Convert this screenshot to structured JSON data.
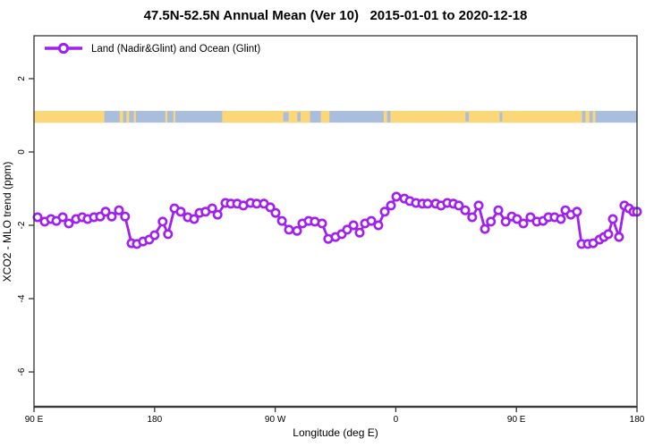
{
  "chart_data": {
    "type": "line",
    "title": "47.5N-52.5N Annual Mean (Ver 10)   2015-01-01 to 2020-12-18",
    "xlabel": "Longitude (deg E)",
    "ylabel": "XCO2 - MLO trend (ppm)",
    "legend": [
      {
        "label": "Land (Nadir&Glint) and Ocean (Glint)",
        "color": "#A020F0",
        "marker": "open-circle"
      }
    ],
    "x_axis": {
      "note": "longitude wraps: 90E -> 180 -> 90W -> 0 -> 90E -> 180, expressed as degrees east of 90E",
      "range_deg": [
        0,
        450
      ],
      "ticks": [
        {
          "pos": 0,
          "label": "90 E"
        },
        {
          "pos": 90,
          "label": "180"
        },
        {
          "pos": 180,
          "label": "90 W"
        },
        {
          "pos": 270,
          "label": "0"
        },
        {
          "pos": 360,
          "label": "90 E"
        },
        {
          "pos": 450,
          "label": "180"
        }
      ],
      "grid": false
    },
    "y_axis": {
      "range": [
        -6.95,
        3.17
      ],
      "ticks": [
        2,
        0,
        -2,
        -4,
        -6
      ],
      "grid": false
    },
    "surface_band": {
      "description": "land(yellow)/ocean(blue) strip near y=1 showing surface type along 47.5N-52.5N",
      "y_from": 0.8,
      "y_to": 1.12,
      "ocean_color": "#A9BEDC",
      "land_color": "#FBD778",
      "land_segments_deg": [
        [
          0,
          52.5
        ],
        [
          64,
          66.5
        ],
        [
          69,
          71
        ],
        [
          74.5,
          76
        ],
        [
          98,
          99.5
        ],
        [
          104,
          105.5
        ],
        [
          140.5,
          206
        ],
        [
          214,
          220.5
        ],
        [
          261,
          263.5
        ],
        [
          266,
          409
        ],
        [
          411.5,
          414.5
        ],
        [
          417,
          419
        ]
      ],
      "ocean_specks_deg": [
        [
          186,
          190
        ],
        [
          196.5,
          199
        ],
        [
          322,
          324.5
        ],
        [
          347.5,
          349.5
        ]
      ]
    },
    "series": [
      {
        "name": "Land (Nadir&Glint) and Ocean (Glint)",
        "color": "#A020F0",
        "marker": "open-circle",
        "points_deg_ppm": [
          [
            2.7,
            -1.78
          ],
          [
            8,
            -1.9
          ],
          [
            12.7,
            -1.83
          ],
          [
            16.7,
            -1.88
          ],
          [
            21.4,
            -1.78
          ],
          [
            26,
            -1.95
          ],
          [
            31.4,
            -1.83
          ],
          [
            36,
            -1.78
          ],
          [
            40,
            -1.83
          ],
          [
            44.7,
            -1.78
          ],
          [
            49.4,
            -1.76
          ],
          [
            53.4,
            -1.63
          ],
          [
            58,
            -1.76
          ],
          [
            63.4,
            -1.59
          ],
          [
            68,
            -1.76
          ],
          [
            72.8,
            -2.49
          ],
          [
            76.8,
            -2.51
          ],
          [
            81.4,
            -2.44
          ],
          [
            86,
            -2.39
          ],
          [
            90,
            -2.27
          ],
          [
            96,
            -1.9
          ],
          [
            100,
            -2.24
          ],
          [
            104.8,
            -1.54
          ],
          [
            109.5,
            -1.63
          ],
          [
            114.8,
            -1.78
          ],
          [
            119.5,
            -1.83
          ],
          [
            123.5,
            -1.66
          ],
          [
            128,
            -1.63
          ],
          [
            133,
            -1.54
          ],
          [
            137,
            -1.71
          ],
          [
            142.9,
            -1.39
          ],
          [
            146.9,
            -1.41
          ],
          [
            151.6,
            -1.41
          ],
          [
            156.2,
            -1.46
          ],
          [
            161.6,
            -1.39
          ],
          [
            166.2,
            -1.41
          ],
          [
            171.6,
            -1.41
          ],
          [
            176.3,
            -1.51
          ],
          [
            180.3,
            -1.66
          ],
          [
            185,
            -1.88
          ],
          [
            190.3,
            -2.12
          ],
          [
            196.3,
            -2.15
          ],
          [
            200.3,
            -1.95
          ],
          [
            205,
            -1.88
          ],
          [
            209.6,
            -1.9
          ],
          [
            215,
            -1.95
          ],
          [
            219.6,
            -2.37
          ],
          [
            225,
            -2.32
          ],
          [
            229.7,
            -2.24
          ],
          [
            233.7,
            -2.12
          ],
          [
            238.4,
            -2.0
          ],
          [
            243,
            -2.2
          ],
          [
            247,
            -1.95
          ],
          [
            251.7,
            -1.88
          ],
          [
            257,
            -2.0
          ],
          [
            261.7,
            -1.63
          ],
          [
            266.4,
            -1.46
          ],
          [
            270.4,
            -1.22
          ],
          [
            276.4,
            -1.27
          ],
          [
            280.4,
            -1.34
          ],
          [
            285,
            -1.39
          ],
          [
            289.8,
            -1.41
          ],
          [
            293.8,
            -1.41
          ],
          [
            299.8,
            -1.41
          ],
          [
            303.8,
            -1.46
          ],
          [
            308.4,
            -1.39
          ],
          [
            313,
            -1.41
          ],
          [
            317,
            -1.46
          ],
          [
            321.8,
            -1.59
          ],
          [
            327,
            -1.78
          ],
          [
            331.8,
            -1.46
          ],
          [
            336.5,
            -2.1
          ],
          [
            341,
            -1.9
          ],
          [
            346.5,
            -1.59
          ],
          [
            352,
            -1.9
          ],
          [
            356.5,
            -1.76
          ],
          [
            360.5,
            -1.83
          ],
          [
            365.2,
            -1.95
          ],
          [
            370.5,
            -1.78
          ],
          [
            375.2,
            -1.9
          ],
          [
            379.9,
            -1.88
          ],
          [
            383.9,
            -1.78
          ],
          [
            388.5,
            -1.78
          ],
          [
            393.2,
            -1.83
          ],
          [
            396.6,
            -1.59
          ],
          [
            400.6,
            -1.71
          ],
          [
            405.2,
            -1.63
          ],
          [
            408.6,
            -2.51
          ],
          [
            413.3,
            -2.51
          ],
          [
            417.3,
            -2.49
          ],
          [
            422,
            -2.39
          ],
          [
            425.3,
            -2.32
          ],
          [
            428.6,
            -2.24
          ],
          [
            432,
            -1.83
          ],
          [
            436.6,
            -2.32
          ],
          [
            440.6,
            -1.46
          ],
          [
            444,
            -1.54
          ],
          [
            447.3,
            -1.63
          ],
          [
            450,
            -1.63
          ]
        ]
      }
    ],
    "colors": {
      "axis": "#333333",
      "background": "#ffffff"
    }
  }
}
